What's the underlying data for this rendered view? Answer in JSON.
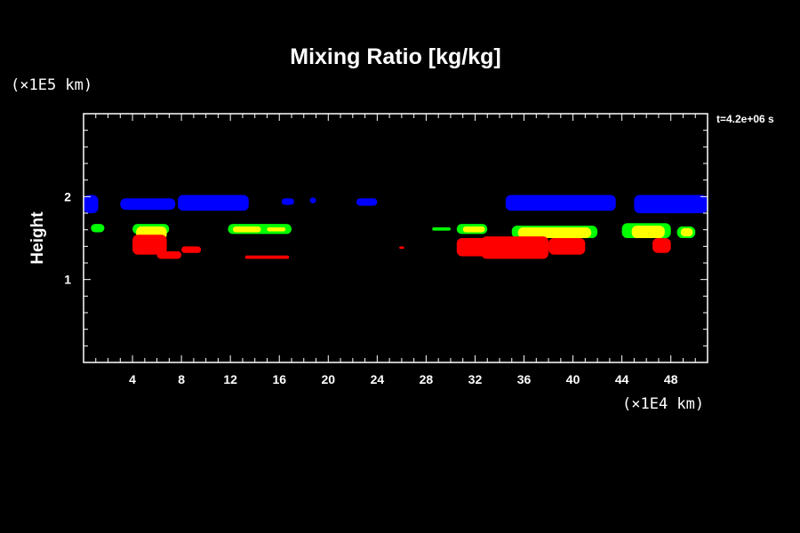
{
  "chart_data": {
    "type": "heatmap",
    "title": "Mixing Ratio [kg/kg]",
    "ylabel": "Height",
    "xlabel": "",
    "x_unit_label": "(×1E4 km)",
    "y_unit_label": "(×1E5 km)",
    "time_label": "t=4.2e+06 s",
    "xlim": [
      0,
      51
    ],
    "ylim": [
      0,
      3
    ],
    "x_ticks": [
      4,
      8,
      12,
      16,
      20,
      24,
      28,
      32,
      36,
      40,
      44,
      48
    ],
    "y_ticks": [
      1,
      2
    ],
    "colors": {
      "blue": "#0000ff",
      "green": "#00ff00",
      "yellow": "#ffff00",
      "red": "#ff0000"
    },
    "regions": [
      {
        "level": "blue",
        "x": [
          0.0,
          1.2
        ],
        "y": [
          1.8,
          2.02
        ]
      },
      {
        "level": "blue",
        "x": [
          3.0,
          7.5
        ],
        "y": [
          1.84,
          1.98
        ]
      },
      {
        "level": "blue",
        "x": [
          7.7,
          13.5
        ],
        "y": [
          1.83,
          2.02
        ]
      },
      {
        "level": "blue",
        "x": [
          16.2,
          17.2
        ],
        "y": [
          1.9,
          1.98
        ]
      },
      {
        "level": "blue",
        "x": [
          18.5,
          19.0
        ],
        "y": [
          1.92,
          1.99
        ]
      },
      {
        "level": "blue",
        "x": [
          22.3,
          24.0
        ],
        "y": [
          1.89,
          1.98
        ]
      },
      {
        "level": "blue",
        "x": [
          34.5,
          43.5
        ],
        "y": [
          1.83,
          2.02
        ]
      },
      {
        "level": "blue",
        "x": [
          45.0,
          51.0
        ],
        "y": [
          1.8,
          2.02
        ]
      },
      {
        "level": "green",
        "x": [
          0.6,
          1.7
        ],
        "y": [
          1.57,
          1.67
        ]
      },
      {
        "level": "green",
        "x": [
          4.0,
          7.0
        ],
        "y": [
          1.55,
          1.67
        ]
      },
      {
        "level": "green",
        "x": [
          11.8,
          17.0
        ],
        "y": [
          1.55,
          1.67
        ]
      },
      {
        "level": "green",
        "x": [
          28.5,
          30.0
        ],
        "y": [
          1.59,
          1.63
        ]
      },
      {
        "level": "green",
        "x": [
          30.5,
          33.0
        ],
        "y": [
          1.55,
          1.67
        ]
      },
      {
        "level": "green",
        "x": [
          35.0,
          42.0
        ],
        "y": [
          1.5,
          1.65
        ]
      },
      {
        "level": "green",
        "x": [
          44.0,
          48.0
        ],
        "y": [
          1.5,
          1.68
        ]
      },
      {
        "level": "green",
        "x": [
          48.5,
          50.0
        ],
        "y": [
          1.5,
          1.64
        ]
      },
      {
        "level": "yellow",
        "x": [
          4.3,
          6.8
        ],
        "y": [
          1.48,
          1.64
        ]
      },
      {
        "level": "yellow",
        "x": [
          12.2,
          14.5
        ],
        "y": [
          1.57,
          1.64
        ]
      },
      {
        "level": "yellow",
        "x": [
          15.0,
          16.5
        ],
        "y": [
          1.58,
          1.63
        ]
      },
      {
        "level": "yellow",
        "x": [
          31.0,
          32.8
        ],
        "y": [
          1.57,
          1.64
        ]
      },
      {
        "level": "yellow",
        "x": [
          35.5,
          41.5
        ],
        "y": [
          1.5,
          1.63
        ]
      },
      {
        "level": "yellow",
        "x": [
          44.8,
          47.5
        ],
        "y": [
          1.5,
          1.65
        ]
      },
      {
        "level": "yellow",
        "x": [
          48.8,
          49.8
        ],
        "y": [
          1.52,
          1.62
        ]
      },
      {
        "level": "red",
        "x": [
          4.0,
          6.8
        ],
        "y": [
          1.3,
          1.54
        ]
      },
      {
        "level": "red",
        "x": [
          6.0,
          8.0
        ],
        "y": [
          1.25,
          1.34
        ]
      },
      {
        "level": "red",
        "x": [
          8.0,
          9.6
        ],
        "y": [
          1.32,
          1.4
        ]
      },
      {
        "level": "red",
        "x": [
          13.2,
          16.8
        ],
        "y": [
          1.25,
          1.29
        ]
      },
      {
        "level": "red",
        "x": [
          25.8,
          26.2
        ],
        "y": [
          1.37,
          1.4
        ]
      },
      {
        "level": "red",
        "x": [
          30.5,
          33.0
        ],
        "y": [
          1.28,
          1.5
        ]
      },
      {
        "level": "red",
        "x": [
          32.5,
          38.0
        ],
        "y": [
          1.25,
          1.52
        ]
      },
      {
        "level": "red",
        "x": [
          38.0,
          41.0
        ],
        "y": [
          1.3,
          1.5
        ]
      },
      {
        "level": "red",
        "x": [
          46.5,
          48.0
        ],
        "y": [
          1.32,
          1.5
        ]
      }
    ]
  }
}
